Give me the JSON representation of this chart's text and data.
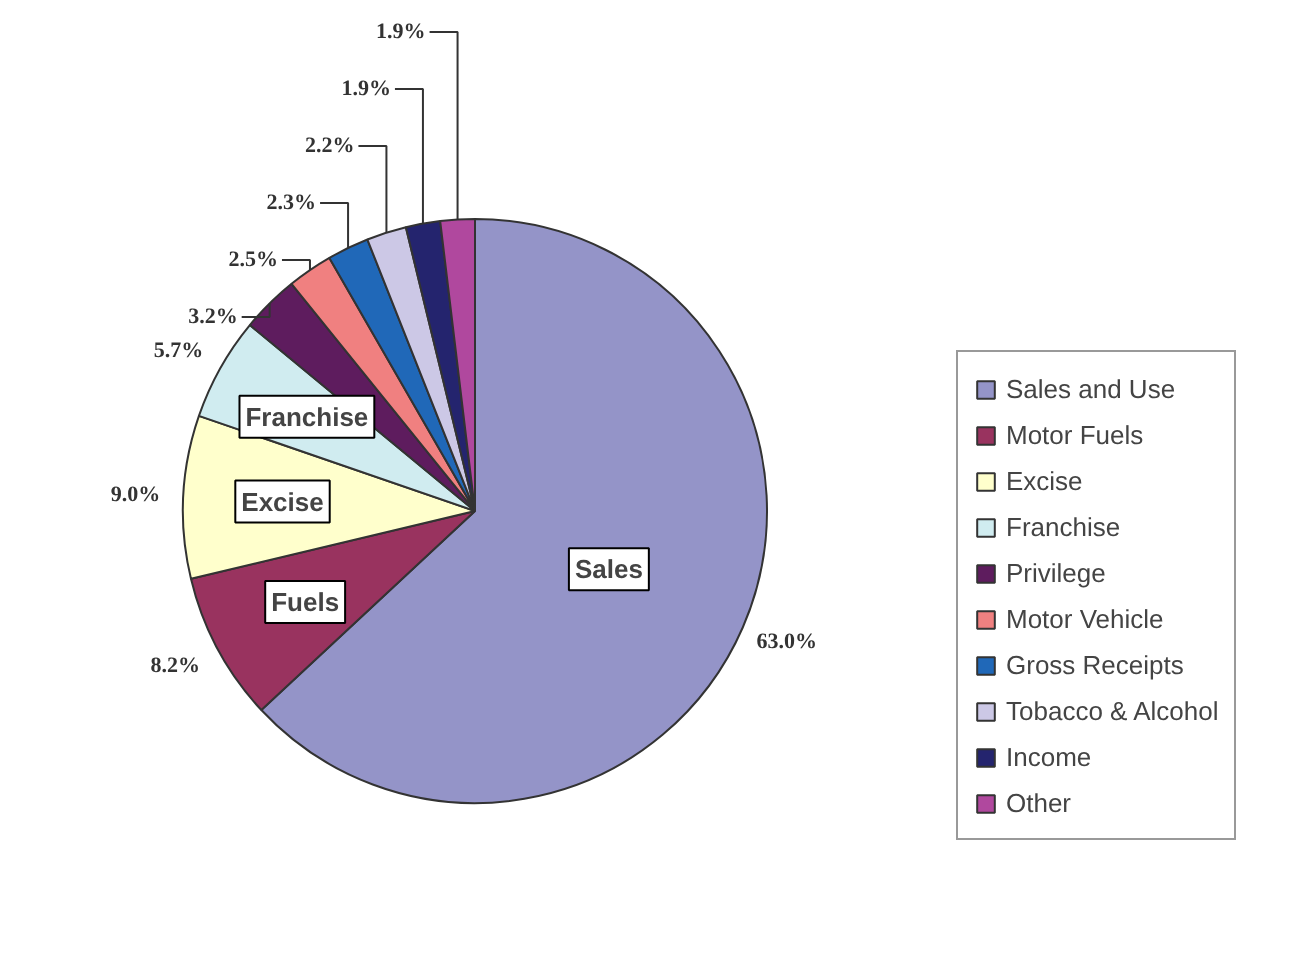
{
  "chart_data": {
    "type": "pie",
    "categories": [
      "Sales and Use",
      "Motor Fuels",
      "Excise",
      "Franchise",
      "Privilege",
      "Motor Vehicle",
      "Gross Receipts",
      "Tobacco & Alcohol",
      "Income",
      "Other"
    ],
    "values": [
      63.0,
      8.2,
      9.0,
      5.7,
      3.2,
      2.5,
      2.3,
      2.2,
      1.9,
      1.9
    ],
    "colors": [
      "#9494c8",
      "#99335f",
      "#ffffcc",
      "#d0ecf0",
      "#5e1c5e",
      "#f08080",
      "#2068b8",
      "#ccc8e6",
      "#24246e",
      "#b0489e"
    ],
    "value_labels": [
      "63.0%",
      "8.2%",
      "9.0%",
      "5.7%",
      "3.2%",
      "2.5%",
      "2.3%",
      "2.2%",
      "1.9%",
      "1.9%"
    ],
    "annotations": [
      {
        "text": "Sales",
        "x": "Sales and Use"
      },
      {
        "text": "Fuels",
        "x": "Motor Fuels"
      },
      {
        "text": "Excise",
        "x": "Excise"
      },
      {
        "text": "Franchise",
        "x": "Franchise"
      }
    ],
    "legend": "right"
  }
}
